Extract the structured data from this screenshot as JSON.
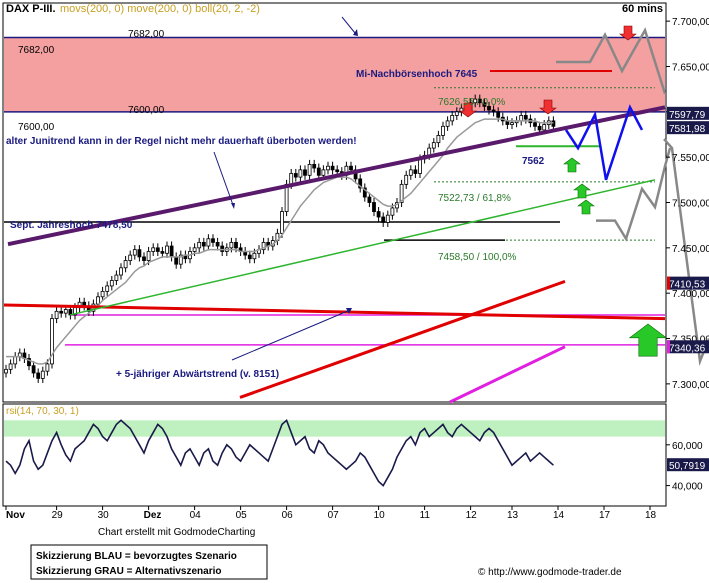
{
  "header": {
    "symbol": "DAX P-III.",
    "indicators": "movs(200, 0) move(200, 0) boll(20, 2, -2)",
    "timeframe": "60 mins"
  },
  "chart_data": {
    "type": "candlestick",
    "price_axis": {
      "ylim": [
        7280,
        7720
      ],
      "ticks": [
        7300,
        7350,
        7400,
        7450,
        7500,
        7550,
        7600,
        7650,
        7700
      ]
    },
    "price_tags": [
      {
        "value": 7597.79,
        "label": "7597,79"
      },
      {
        "value": 7581.98,
        "label": "7581,98"
      },
      {
        "value": 7410.53,
        "label": "7410,53"
      },
      {
        "value": 7340.36,
        "label": "7340,36"
      }
    ],
    "x_labels": [
      "Nov",
      "29",
      "30",
      "Dez",
      "04",
      "05",
      "06",
      "07",
      "10",
      "11",
      "12",
      "13",
      "14",
      "17",
      "18"
    ],
    "x_label_slots": [
      0,
      11,
      21,
      31,
      41,
      51,
      61,
      71,
      81,
      91,
      101,
      110,
      120,
      130,
      140
    ],
    "resistance_zone": {
      "from": 7600,
      "to": 7682,
      "label_upper": "7682,00",
      "label_lower": "7600,00"
    },
    "annotations": {
      "nachboersenhoch": "Mi-Nachbörsenhoch 7645",
      "fib1": "7626,55 / 0,0%",
      "fib2": "7522,73 / 61,8%",
      "fib3": "7458,50 / 100,0%",
      "low_mark": "7562",
      "junitrend": "alter Junitrend kann in der Regel nicht mehr dauerhaft überboten werden!",
      "jahreshoch": "Sept. Jahreshoch 7478,50",
      "abwaertstrend": "+ 5-jähriger Abwärtstrend (v. 8151)"
    },
    "candles_close": [
      7316,
      7322,
      7330,
      7334,
      7328,
      7320,
      7312,
      7306,
      7314,
      7322,
      7372,
      7380,
      7378,
      7382,
      7376,
      7384,
      7390,
      7386,
      7380,
      7388,
      7396,
      7402,
      7408,
      7414,
      7420,
      7428,
      7436,
      7442,
      7448,
      7440,
      7436,
      7446,
      7450,
      7446,
      7444,
      7452,
      7440,
      7432,
      7442,
      7438,
      7446,
      7450,
      7456,
      7452,
      7460,
      7456,
      7452,
      7446,
      7450,
      7456,
      7450,
      7446,
      7442,
      7438,
      7444,
      7448,
      7456,
      7452,
      7458,
      7466,
      7490,
      7520,
      7532,
      7528,
      7536,
      7530,
      7542,
      7538,
      7530,
      7536,
      7540,
      7536,
      7534,
      7530,
      7540,
      7536,
      7526,
      7516,
      7506,
      7500,
      7490,
      7484,
      7478,
      7486,
      7494,
      7500,
      7520,
      7530,
      7536,
      7532,
      7548,
      7552,
      7560,
      7566,
      7574,
      7584,
      7590,
      7596,
      7600,
      7604,
      7602,
      7610,
      7614,
      7610,
      7606,
      7602,
      7600,
      7594,
      7590,
      7586,
      7588,
      7590,
      7596,
      7592,
      7588,
      7584,
      7580,
      7586,
      7590,
      7584
    ],
    "bollinger_mid": [
      7330,
      7330,
      7330,
      7330,
      7328,
      7326,
      7324,
      7322,
      7322,
      7324,
      7332,
      7340,
      7346,
      7352,
      7358,
      7364,
      7370,
      7374,
      7378,
      7382,
      7386,
      7392,
      7396,
      7400,
      7404,
      7408,
      7412,
      7418,
      7424,
      7428,
      7430,
      7434,
      7436,
      7438,
      7440,
      7440,
      7440,
      7440,
      7440,
      7442,
      7442,
      7444,
      7444,
      7446,
      7448,
      7448,
      7448,
      7448,
      7448,
      7448,
      7448,
      7446,
      7446,
      7446,
      7446,
      7448,
      7450,
      7452,
      7454,
      7458,
      7464,
      7472,
      7480,
      7488,
      7496,
      7502,
      7508,
      7514,
      7518,
      7522,
      7524,
      7526,
      7528,
      7528,
      7528,
      7526,
      7522,
      7518,
      7514,
      7510,
      7506,
      7502,
      7498,
      7496,
      7496,
      7498,
      7502,
      7506,
      7510,
      7516,
      7522,
      7528,
      7534,
      7540,
      7546,
      7552,
      7560,
      7566,
      7572,
      7576,
      7580,
      7584,
      7588,
      7590,
      7592,
      7592,
      7592,
      7592,
      7592,
      7590,
      7590,
      7590,
      7590,
      7590,
      7590,
      7590,
      7588,
      7588,
      7588,
      7588
    ],
    "rsi": {
      "title": "rsi(14, 70, 30, 1)",
      "ylim": [
        30,
        80
      ],
      "ticks": [
        40,
        60
      ],
      "tag": "50,7919",
      "values": [
        52,
        50,
        46,
        50,
        58,
        62,
        52,
        48,
        50,
        56,
        62,
        66,
        60,
        55,
        52,
        58,
        60,
        62,
        66,
        70,
        68,
        64,
        62,
        66,
        70,
        72,
        70,
        68,
        64,
        60,
        56,
        62,
        66,
        70,
        68,
        64,
        58,
        54,
        50,
        56,
        58,
        54,
        50,
        56,
        58,
        52,
        50,
        56,
        60,
        58,
        54,
        52,
        56,
        60,
        58,
        56,
        54,
        52,
        58,
        64,
        70,
        72,
        66,
        60,
        62,
        64,
        58,
        56,
        62,
        60,
        56,
        54,
        52,
        50,
        48,
        50,
        52,
        56,
        54,
        50,
        46,
        42,
        40,
        44,
        48,
        54,
        58,
        62,
        64,
        60,
        66,
        68,
        64,
        66,
        68,
        70,
        66,
        64,
        68,
        70,
        68,
        66,
        64,
        62,
        66,
        68,
        66,
        62,
        58,
        54,
        50,
        52,
        54,
        56,
        52,
        54,
        56,
        54,
        52,
        50
      ]
    },
    "legend": [
      "Skizzierung BLAU = bevorzugtes Szenario",
      "Skizzierung GRAU = Alternativszenario"
    ]
  },
  "footer": {
    "credit": "Chart erstellt mit GodmodeCharting",
    "website": "© http://www.godmode-trader.de"
  },
  "colors": {
    "zone": "#f4a0a0",
    "trend_purple": "#5a1a6b",
    "red": "#e00000",
    "green": "#2db52d",
    "magenta": "#e020e0",
    "blue": "#1010ee",
    "grey": "#888888",
    "navy": "#1a1a80"
  }
}
